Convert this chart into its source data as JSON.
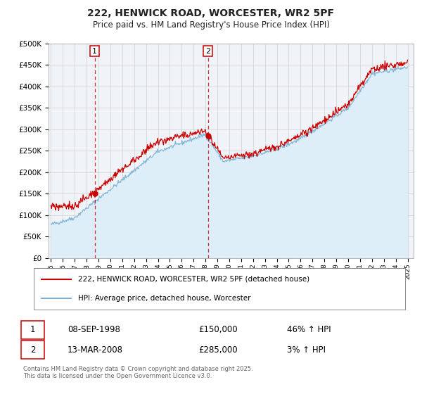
{
  "title": "222, HENWICK ROAD, WORCESTER, WR2 5PF",
  "subtitle": "Price paid vs. HM Land Registry's House Price Index (HPI)",
  "sale1_date": "08-SEP-1998",
  "sale1_price": 150000,
  "sale1_label": "46% ↑ HPI",
  "sale2_date": "13-MAR-2008",
  "sale2_price": 285000,
  "sale2_label": "3% ↑ HPI",
  "sale1_year": 1998.69,
  "sale2_year": 2008.2,
  "red_line_color": "#cc0000",
  "blue_line_color": "#7ab0d4",
  "shaded_color": "#ddeef8",
  "vline_color": "#cc0000",
  "chart_bg_color": "#f0f4f8",
  "legend_label1": "222, HENWICK ROAD, WORCESTER, WR2 5PF (detached house)",
  "legend_label2": "HPI: Average price, detached house, Worcester",
  "footer": "Contains HM Land Registry data © Crown copyright and database right 2025.\nThis data is licensed under the Open Government Licence v3.0.",
  "ylim": [
    0,
    500000
  ],
  "yticks": [
    0,
    50000,
    100000,
    150000,
    200000,
    250000,
    300000,
    350000,
    400000,
    450000,
    500000
  ],
  "ytick_labels": [
    "£0",
    "£50K",
    "£100K",
    "£150K",
    "£200K",
    "£250K",
    "£300K",
    "£350K",
    "£400K",
    "£450K",
    "£500K"
  ],
  "xlim_start": 1994.8,
  "xlim_end": 2025.5,
  "xticks": [
    1995,
    1996,
    1997,
    1998,
    1999,
    2000,
    2001,
    2002,
    2003,
    2004,
    2005,
    2006,
    2007,
    2008,
    2009,
    2010,
    2011,
    2012,
    2013,
    2014,
    2015,
    2016,
    2017,
    2018,
    2019,
    2020,
    2021,
    2022,
    2023,
    2024,
    2025
  ]
}
